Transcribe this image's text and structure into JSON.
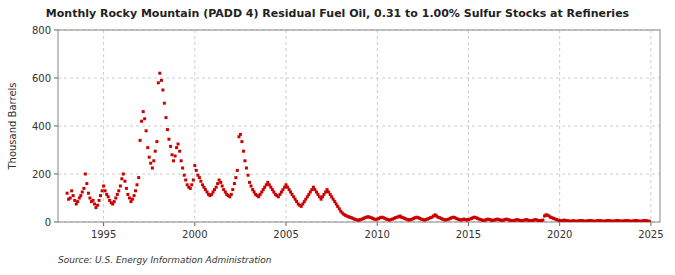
{
  "chart_data": {
    "type": "scatter",
    "title": "Monthly Rocky Mountain (PADD 4) Residual Fuel Oil, 0.31 to 1.00% Sulfur Stocks at Refineries",
    "ylabel": "Thousand Barrels",
    "source": "Source: U.S. Energy Information Administration",
    "color": "#cc0000",
    "marker": "square",
    "grid": true,
    "xlim": [
      1992.5,
      2025.5
    ],
    "xticks": [
      1995,
      2000,
      2005,
      2010,
      2015,
      2020,
      2025
    ],
    "ylim": [
      0,
      800
    ],
    "yticks": [
      0,
      200,
      400,
      600,
      800
    ],
    "x": [
      1993.0,
      1993.08,
      1993.17,
      1993.25,
      1993.33,
      1993.42,
      1993.5,
      1993.58,
      1993.67,
      1993.75,
      1993.83,
      1993.92,
      1994.0,
      1994.08,
      1994.17,
      1994.25,
      1994.33,
      1994.42,
      1994.5,
      1994.58,
      1994.67,
      1994.75,
      1994.83,
      1994.92,
      1995.0,
      1995.08,
      1995.17,
      1995.25,
      1995.33,
      1995.42,
      1995.5,
      1995.58,
      1995.67,
      1995.75,
      1995.83,
      1995.92,
      1996.0,
      1996.08,
      1996.17,
      1996.25,
      1996.33,
      1996.42,
      1996.5,
      1996.58,
      1996.67,
      1996.75,
      1996.83,
      1996.92,
      1997.0,
      1997.08,
      1997.17,
      1997.25,
      1997.33,
      1997.42,
      1997.5,
      1997.58,
      1997.67,
      1997.75,
      1997.83,
      1997.92,
      1998.0,
      1998.08,
      1998.17,
      1998.25,
      1998.33,
      1998.42,
      1998.5,
      1998.58,
      1998.67,
      1998.75,
      1998.83,
      1998.92,
      1999.0,
      1999.08,
      1999.17,
      1999.25,
      1999.33,
      1999.42,
      1999.5,
      1999.58,
      1999.67,
      1999.75,
      1999.83,
      1999.92,
      2000.0,
      2000.08,
      2000.17,
      2000.25,
      2000.33,
      2000.42,
      2000.5,
      2000.58,
      2000.67,
      2000.75,
      2000.83,
      2000.92,
      2001.0,
      2001.08,
      2001.17,
      2001.25,
      2001.33,
      2001.42,
      2001.5,
      2001.58,
      2001.67,
      2001.75,
      2001.83,
      2001.92,
      2002.0,
      2002.08,
      2002.17,
      2002.25,
      2002.33,
      2002.42,
      2002.5,
      2002.58,
      2002.67,
      2002.75,
      2002.83,
      2002.92,
      2003.0,
      2003.08,
      2003.17,
      2003.25,
      2003.33,
      2003.42,
      2003.5,
      2003.58,
      2003.67,
      2003.75,
      2003.83,
      2003.92,
      2004.0,
      2004.08,
      2004.17,
      2004.25,
      2004.33,
      2004.42,
      2004.5,
      2004.58,
      2004.67,
      2004.75,
      2004.83,
      2004.92,
      2005.0,
      2005.08,
      2005.17,
      2005.25,
      2005.33,
      2005.42,
      2005.5,
      2005.58,
      2005.67,
      2005.75,
      2005.83,
      2005.92,
      2006.0,
      2006.08,
      2006.17,
      2006.25,
      2006.33,
      2006.42,
      2006.5,
      2006.58,
      2006.67,
      2006.75,
      2006.83,
      2006.92,
      2007.0,
      2007.08,
      2007.17,
      2007.25,
      2007.33,
      2007.42,
      2007.5,
      2007.58,
      2007.67,
      2007.75,
      2007.83,
      2007.92,
      2008.0,
      2008.08,
      2008.17,
      2008.25,
      2008.33,
      2008.42,
      2008.5,
      2008.58,
      2008.67,
      2008.75,
      2008.83,
      2008.92,
      2009.0,
      2009.08,
      2009.17,
      2009.25,
      2009.33,
      2009.42,
      2009.5,
      2009.58,
      2009.67,
      2009.75,
      2009.83,
      2009.92,
      2010.0,
      2010.08,
      2010.17,
      2010.25,
      2010.33,
      2010.42,
      2010.5,
      2010.58,
      2010.67,
      2010.75,
      2010.83,
      2010.92,
      2011.0,
      2011.08,
      2011.17,
      2011.25,
      2011.33,
      2011.42,
      2011.5,
      2011.58,
      2011.67,
      2011.75,
      2011.83,
      2011.92,
      2012.0,
      2012.08,
      2012.17,
      2012.25,
      2012.33,
      2012.42,
      2012.5,
      2012.58,
      2012.67,
      2012.75,
      2012.83,
      2012.92,
      2013.0,
      2013.08,
      2013.17,
      2013.25,
      2013.33,
      2013.42,
      2013.5,
      2013.58,
      2013.67,
      2013.75,
      2013.83,
      2013.92,
      2014.0,
      2014.08,
      2014.17,
      2014.25,
      2014.33,
      2014.42,
      2014.5,
      2014.58,
      2014.67,
      2014.75,
      2014.83,
      2014.92,
      2015.0,
      2015.08,
      2015.17,
      2015.25,
      2015.33,
      2015.42,
      2015.5,
      2015.58,
      2015.67,
      2015.75,
      2015.83,
      2015.92,
      2016.0,
      2016.08,
      2016.17,
      2016.25,
      2016.33,
      2016.42,
      2016.5,
      2016.58,
      2016.67,
      2016.75,
      2016.83,
      2016.92,
      2017.0,
      2017.08,
      2017.17,
      2017.25,
      2017.33,
      2017.42,
      2017.5,
      2017.58,
      2017.67,
      2017.75,
      2017.83,
      2017.92,
      2018.0,
      2018.08,
      2018.17,
      2018.25,
      2018.33,
      2018.42,
      2018.5,
      2018.58,
      2018.67,
      2018.75,
      2018.83,
      2018.92,
      2019.0,
      2019.08,
      2019.17,
      2019.25,
      2019.33,
      2019.42,
      2019.5,
      2019.58,
      2019.67,
      2019.75,
      2019.83,
      2019.92,
      2020.0,
      2020.08,
      2020.17,
      2020.25,
      2020.33,
      2020.42,
      2020.5,
      2020.58,
      2020.67,
      2020.75,
      2020.83,
      2020.92,
      2021.0,
      2021.08,
      2021.17,
      2021.25,
      2021.33,
      2021.42,
      2021.5,
      2021.58,
      2021.67,
      2021.75,
      2021.83,
      2021.92,
      2022.0,
      2022.08,
      2022.17,
      2022.25,
      2022.33,
      2022.42,
      2022.5,
      2022.58,
      2022.67,
      2022.75,
      2022.83,
      2022.92,
      2023.0,
      2023.08,
      2023.17,
      2023.25,
      2023.33,
      2023.42,
      2023.5,
      2023.58,
      2023.67,
      2023.75,
      2023.83,
      2023.92,
      2024.0,
      2024.08,
      2024.17,
      2024.25,
      2024.33,
      2024.42,
      2024.5,
      2024.58,
      2024.67,
      2024.75,
      2024.83,
      2024.92
    ],
    "values": [
      120,
      95,
      100,
      130,
      110,
      90,
      75,
      85,
      100,
      110,
      125,
      140,
      200,
      160,
      120,
      100,
      85,
      90,
      75,
      60,
      70,
      90,
      110,
      130,
      150,
      130,
      115,
      105,
      90,
      80,
      75,
      85,
      100,
      115,
      130,
      150,
      180,
      200,
      170,
      140,
      115,
      100,
      85,
      95,
      110,
      130,
      155,
      185,
      340,
      420,
      460,
      430,
      380,
      310,
      270,
      245,
      225,
      255,
      295,
      335,
      580,
      620,
      590,
      550,
      495,
      435,
      385,
      345,
      315,
      280,
      255,
      275,
      310,
      325,
      295,
      255,
      225,
      195,
      175,
      155,
      145,
      140,
      155,
      175,
      235,
      215,
      195,
      185,
      170,
      155,
      145,
      135,
      125,
      115,
      110,
      115,
      125,
      135,
      145,
      160,
      175,
      165,
      150,
      135,
      125,
      115,
      110,
      105,
      115,
      135,
      160,
      185,
      215,
      355,
      365,
      335,
      295,
      255,
      225,
      195,
      165,
      150,
      135,
      125,
      115,
      110,
      105,
      115,
      125,
      135,
      145,
      155,
      165,
      155,
      145,
      135,
      125,
      115,
      110,
      105,
      115,
      125,
      135,
      145,
      155,
      145,
      135,
      125,
      115,
      105,
      95,
      85,
      75,
      70,
      65,
      75,
      85,
      95,
      105,
      115,
      125,
      135,
      145,
      135,
      125,
      115,
      105,
      95,
      105,
      115,
      125,
      135,
      125,
      115,
      105,
      95,
      85,
      75,
      65,
      55,
      45,
      38,
      32,
      28,
      25,
      22,
      20,
      18,
      15,
      12,
      10,
      8,
      8,
      10,
      12,
      15,
      18,
      20,
      22,
      20,
      18,
      15,
      12,
      10,
      12,
      15,
      18,
      20,
      18,
      15,
      12,
      10,
      8,
      10,
      12,
      15,
      18,
      20,
      22,
      25,
      20,
      18,
      15,
      12,
      10,
      8,
      10,
      12,
      15,
      18,
      20,
      18,
      15,
      12,
      10,
      8,
      10,
      12,
      15,
      18,
      20,
      25,
      30,
      25,
      20,
      18,
      15,
      12,
      10,
      8,
      10,
      12,
      15,
      18,
      20,
      18,
      15,
      12,
      10,
      8,
      10,
      12,
      10,
      8,
      10,
      12,
      15,
      18,
      20,
      18,
      15,
      12,
      10,
      8,
      6,
      8,
      10,
      12,
      10,
      8,
      6,
      8,
      10,
      12,
      10,
      8,
      6,
      8,
      10,
      12,
      10,
      8,
      6,
      5,
      6,
      8,
      10,
      8,
      6,
      5,
      6,
      8,
      10,
      8,
      6,
      5,
      6,
      8,
      10,
      8,
      6,
      5,
      6,
      8,
      25,
      30,
      28,
      25,
      20,
      18,
      15,
      12,
      10,
      8,
      6,
      5,
      6,
      8,
      6,
      5,
      4,
      3,
      4,
      5,
      4,
      3,
      4,
      5,
      6,
      5,
      4,
      3,
      4,
      5,
      6,
      5,
      4,
      3,
      4,
      5,
      6,
      5,
      4,
      3,
      4,
      5,
      6,
      5,
      4,
      3,
      4,
      5,
      6,
      5,
      4,
      3,
      4,
      5,
      6,
      5,
      4,
      3,
      4,
      5,
      6,
      5,
      4,
      3,
      4,
      5,
      6,
      5,
      4,
      3
    ]
  }
}
